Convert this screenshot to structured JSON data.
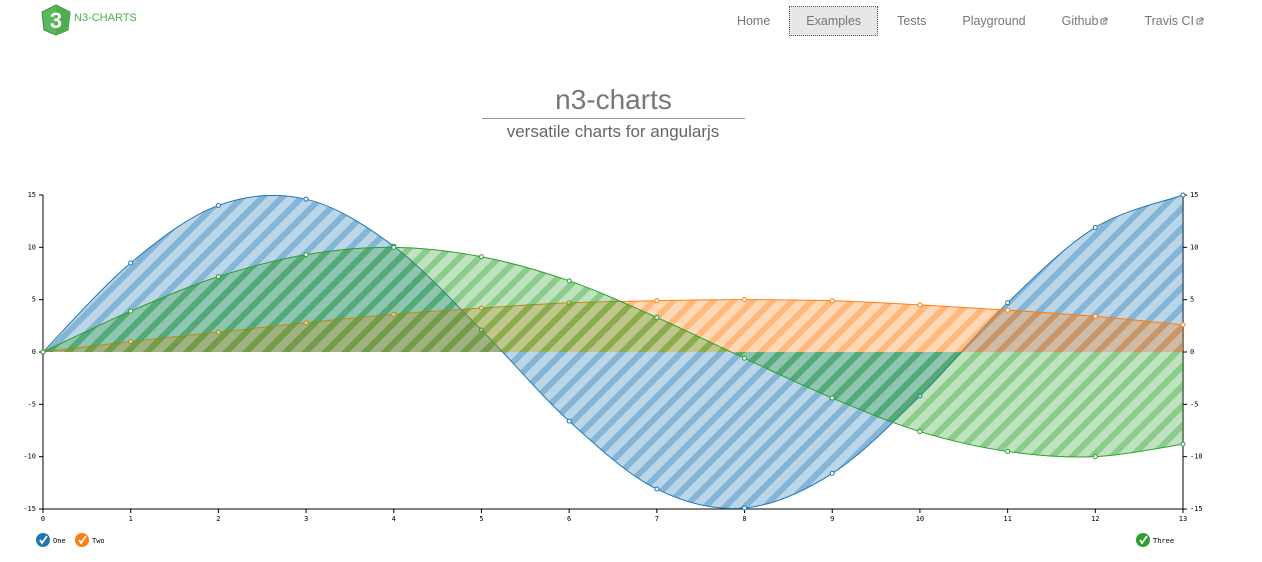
{
  "header": {
    "logo_mark": "3",
    "logo_text": "N3-CHARTS",
    "nav": [
      {
        "label": "Home"
      },
      {
        "label": "Examples",
        "active": true
      },
      {
        "label": "Tests"
      },
      {
        "label": "Playground"
      },
      {
        "label": "Github",
        "external": true
      },
      {
        "label": "Travis CI",
        "external": true
      }
    ]
  },
  "hero": {
    "title": "n3-charts",
    "subtitle": "versatile charts for angularjs"
  },
  "chart_data": {
    "type": "area",
    "x": [
      0,
      1,
      2,
      3,
      4,
      5,
      6,
      7,
      8,
      9,
      10,
      11,
      12,
      13
    ],
    "xlim": [
      0,
      13
    ],
    "xticks": [
      0,
      1,
      2,
      3,
      4,
      5,
      6,
      7,
      8,
      9,
      10,
      11,
      12,
      13
    ],
    "ylim": [
      -15,
      15
    ],
    "yticks": [
      -15,
      -10,
      -5,
      0,
      5,
      10,
      15
    ],
    "y2lim": [
      -15,
      15
    ],
    "y2ticks": [
      -15,
      -10,
      -5,
      0,
      5,
      10,
      15
    ],
    "striped": true,
    "series": [
      {
        "name": "One",
        "color": "#1f77b4",
        "values": [
          0,
          8.5,
          14,
          14.6,
          10.1,
          2.1,
          -6.6,
          -13.1,
          -14.9,
          -11.6,
          -4.2,
          4.7,
          11.9,
          15
        ]
      },
      {
        "name": "Two",
        "color": "#ff7f0e",
        "values": [
          0,
          1,
          1.9,
          2.8,
          3.6,
          4.2,
          4.7,
          4.9,
          5,
          4.9,
          4.5,
          4,
          3.4,
          2.6
        ]
      },
      {
        "name": "Three",
        "color": "#2ca02c",
        "axis": "y2",
        "values": [
          0,
          3.9,
          7.2,
          9.3,
          10,
          9.1,
          6.8,
          3.3,
          -0.6,
          -4.4,
          -7.6,
          -9.5,
          -10,
          -8.8
        ]
      }
    ]
  }
}
